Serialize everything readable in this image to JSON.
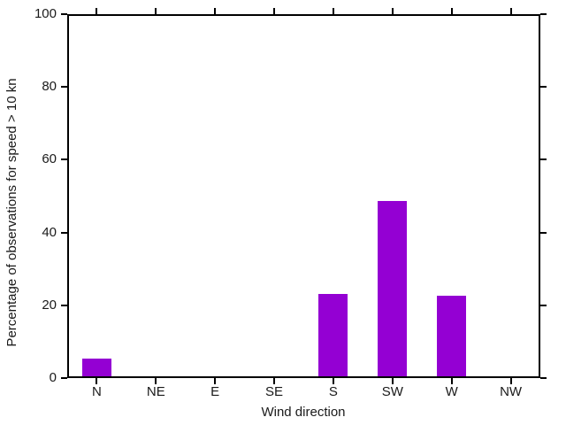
{
  "chart_data": {
    "type": "bar",
    "title": "",
    "categories": [
      "N",
      "NE",
      "E",
      "SE",
      "S",
      "SW",
      "W",
      "NW"
    ],
    "values": [
      5.4,
      0,
      0,
      0,
      23.1,
      48.6,
      22.6,
      0
    ],
    "xlabel": "Wind direction",
    "ylabel": "Percentage of observations for speed > 10 kn",
    "ylim": [
      0,
      100
    ],
    "yticks": [
      0,
      20,
      40,
      60,
      80,
      100
    ],
    "grid": false,
    "legend": "none",
    "tick_style": "outward, mirrored on top and right",
    "colors": {
      "bar": "#9400D3",
      "axis": "#000000",
      "background": "#FFFFFF",
      "text": "#1A1A1A"
    }
  }
}
